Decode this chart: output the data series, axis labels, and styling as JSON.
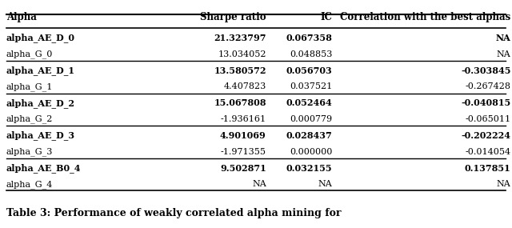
{
  "columns": [
    "Alpha",
    "Sharpe ratio",
    "IC",
    "Correlation with the best alphas"
  ],
  "rows": [
    [
      "alpha_AE_D_0",
      "21.323797",
      "0.067358",
      "NA"
    ],
    [
      "alpha_G_0",
      "13.034052",
      "0.048853",
      "NA"
    ],
    [
      "alpha_AE_D_1",
      "13.580572",
      "0.056703",
      "-0.303845"
    ],
    [
      "alpha_G_1",
      "4.407823",
      "0.037521",
      "-0.267428"
    ],
    [
      "alpha_AE_D_2",
      "15.067808",
      "0.052464",
      "-0.040815"
    ],
    [
      "alpha_G_2",
      "-1.936161",
      "0.000779",
      "-0.065011"
    ],
    [
      "alpha_AE_D_3",
      "4.901069",
      "0.028437",
      "-0.202224"
    ],
    [
      "alpha_G_3",
      "-1.971355",
      "0.000000",
      "-0.014054"
    ],
    [
      "alpha_AE_B0_4",
      "9.502871",
      "0.032155",
      "0.137851"
    ],
    [
      "alpha_G_4",
      "NA",
      "NA",
      "NA"
    ]
  ],
  "bold_rows": [
    0,
    2,
    4,
    6,
    8
  ],
  "group_dividers": [
    2,
    4,
    6,
    8
  ],
  "caption": "Table 3: Performance of weakly correlated alpha mining for",
  "col_aligns": [
    "left",
    "right",
    "right",
    "right"
  ],
  "background_color": "#ffffff"
}
